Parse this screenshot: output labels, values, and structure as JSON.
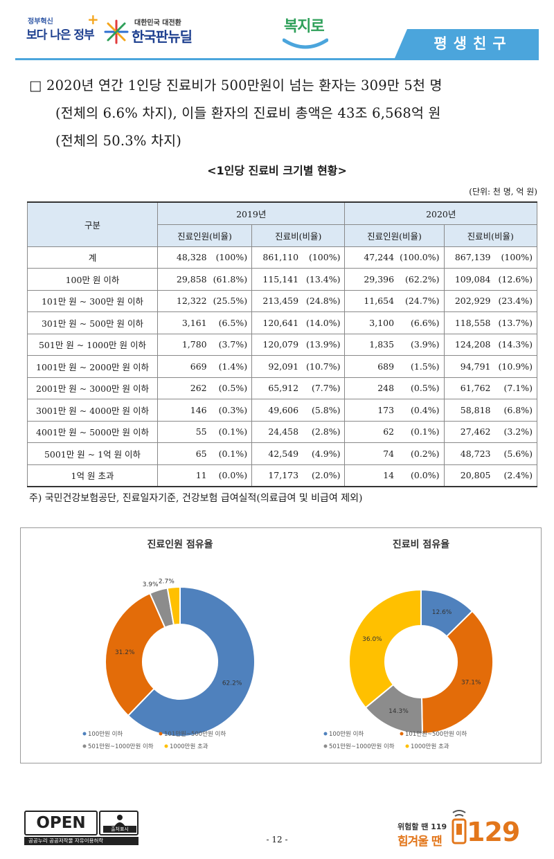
{
  "header": {
    "gov_small": "정부혁신",
    "gov_big": "보다 나은 정부",
    "newdeal_small": "대한민국 대전환",
    "newdeal_big": "한국판뉴딜",
    "bokjiro": "복지로",
    "tab": "평생친구"
  },
  "summary": {
    "bullet": "□",
    "line1": "2020년 연간 1인당 진료비가 500만원이 넘는 환자는 309만 5천 명",
    "line2": "(전체의 6.6% 차지), 이들 환자의 진료비 총액은 43조 6,568억 원",
    "line3": "(전체의 50.3% 차지)"
  },
  "table": {
    "title": "<1인당 진료비 크기별 현황>",
    "unit": "(단위: 천 명, 억 원)",
    "col_category": "구분",
    "years": [
      "2019년",
      "2020년"
    ],
    "subcols": [
      "진료인원(비율)",
      "진료비(비율)",
      "진료인원(비율)",
      "진료비(비율)"
    ],
    "rows": [
      {
        "cat": "계",
        "v": [
          "48,328",
          "(100%)",
          "861,110",
          "(100%)",
          "47,244",
          "(100.0%)",
          "867,139",
          "(100%)"
        ]
      },
      {
        "cat": "100만 원 이하",
        "v": [
          "29,858",
          "(61.8%)",
          "115,141",
          "(13.4%)",
          "29,396",
          "(62.2%)",
          "109,084",
          "(12.6%)"
        ]
      },
      {
        "cat": "101만 원 ~ 300만 원 이하",
        "v": [
          "12,322",
          "(25.5%)",
          "213,459",
          "(24.8%)",
          "11,654",
          "(24.7%)",
          "202,929",
          "(23.4%)"
        ]
      },
      {
        "cat": "301만 원 ~ 500만 원 이하",
        "v": [
          "3,161",
          "(6.5%)",
          "120,641",
          "(14.0%)",
          "3,100",
          "(6.6%)",
          "118,558",
          "(13.7%)"
        ]
      },
      {
        "cat": "501만 원 ~ 1000만 원 이하",
        "v": [
          "1,780",
          "(3.7%)",
          "120,079",
          "(13.9%)",
          "1,835",
          "(3.9%)",
          "124,208",
          "(14.3%)"
        ]
      },
      {
        "cat": "1001만 원 ~ 2000만 원 이하",
        "v": [
          "669",
          "(1.4%)",
          "92,091",
          "(10.7%)",
          "689",
          "(1.5%)",
          "94,791",
          "(10.9%)"
        ]
      },
      {
        "cat": "2001만 원 ~ 3000만 원 이하",
        "v": [
          "262",
          "(0.5%)",
          "65,912",
          "(7.7%)",
          "248",
          "(0.5%)",
          "61,762",
          "(7.1%)"
        ]
      },
      {
        "cat": "3001만 원 ~ 4000만 원 이하",
        "v": [
          "146",
          "(0.3%)",
          "49,606",
          "(5.8%)",
          "173",
          "(0.4%)",
          "58,818",
          "(6.8%)"
        ]
      },
      {
        "cat": "4001만 원 ~ 5000만 원 이하",
        "v": [
          "55",
          "(0.1%)",
          "24,458",
          "(2.8%)",
          "62",
          "(0.1%)",
          "27,462",
          "(3.2%)"
        ]
      },
      {
        "cat": "5001만 원 ~ 1억 원 이하",
        "v": [
          "65",
          "(0.1%)",
          "42,549",
          "(4.9%)",
          "74",
          "(0.2%)",
          "48,723",
          "(5.6%)"
        ]
      },
      {
        "cat": "1억 원 초과",
        "v": [
          "11",
          "(0.0%)",
          "17,173",
          "(2.0%)",
          "14",
          "(0.0%)",
          "20,805",
          "(2.4%)"
        ]
      }
    ],
    "note": "주) 국민건강보험공단, 진료일자기준, 건강보험 급여실적(의료급여 및 비급여 제외)"
  },
  "chart_data": [
    {
      "type": "pie",
      "title": "진료인원 점유율",
      "categories": [
        "100만원 이하",
        "101만원~500만원 이하",
        "501만원~1000만원 이하",
        "1000만원 초과"
      ],
      "values": [
        62.2,
        31.2,
        3.9,
        2.7
      ],
      "labels": [
        "62.2%",
        "31.2%",
        "3.9%",
        "2.7%"
      ],
      "colors": [
        "#4f81bd",
        "#e36c09",
        "#8c8c8c",
        "#ffc000"
      ],
      "legend": "bottom"
    },
    {
      "type": "pie",
      "title": "진료비 점유율",
      "categories": [
        "100만원 이하",
        "101만원~500만원 이하",
        "501만원~1000만원 이하",
        "1000만원 초과"
      ],
      "values": [
        12.6,
        37.1,
        14.3,
        36.0
      ],
      "labels": [
        "12.6%",
        "37.1%",
        "14.3%",
        "36.0%"
      ],
      "colors": [
        "#4f81bd",
        "#e36c09",
        "#8c8c8c",
        "#ffc000"
      ],
      "legend": "bottom"
    }
  ],
  "footer": {
    "open_text": "OPEN",
    "open_type_label": "출처표시",
    "open_bar": "공공누리  공공저작물 자유이용허락",
    "page": "- 12 -",
    "hot_small": "위험할 땐 119",
    "hot_big": "힘겨울 땐",
    "hot_num": "129"
  }
}
